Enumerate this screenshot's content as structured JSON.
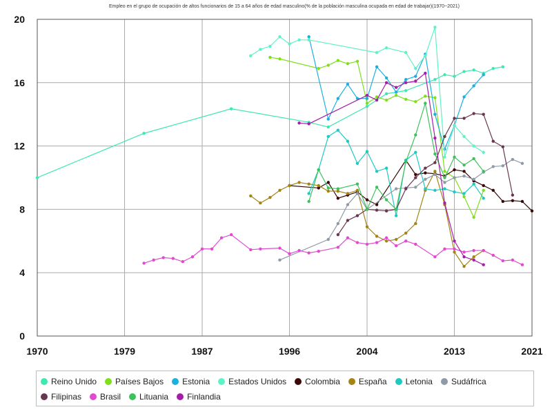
{
  "chart_data": {
    "type": "line",
    "title": "Empleo en el grupo de ocupación de altos funcionarios de 15 a 64 años de edad masculino(% de la población masculina ocupada en edad de trabajar)(1970~2021)",
    "xlabel": "",
    "ylabel": "",
    "xlim": [
      1970,
      2021
    ],
    "ylim": [
      0,
      20
    ],
    "x_ticks": [
      1970,
      1979,
      1987,
      1996,
      2004,
      2013,
      2021
    ],
    "y_ticks": [
      0,
      4,
      8,
      12,
      16,
      20
    ],
    "grid": true,
    "legend_position": "bottom",
    "series": [
      {
        "name": "Reino Unido",
        "color": "#3de8b2",
        "points": [
          [
            1970,
            10.0
          ],
          [
            1981,
            12.8
          ],
          [
            1990,
            14.35
          ],
          [
            1998,
            13.5
          ],
          [
            2000,
            13.2
          ],
          [
            2004,
            14.5
          ],
          [
            2006,
            15.3
          ],
          [
            2008,
            15.5
          ],
          [
            2011,
            16.2
          ],
          [
            2012,
            16.5
          ],
          [
            2013,
            16.4
          ],
          [
            2014,
            16.7
          ],
          [
            2015,
            16.8
          ],
          [
            2016,
            16.6
          ],
          [
            2017,
            16.9
          ],
          [
            2018,
            17.0
          ]
        ]
      },
      {
        "name": "Países Bajos",
        "color": "#7ee01c",
        "points": [
          [
            1994,
            17.6
          ],
          [
            1995,
            17.5
          ],
          [
            1999,
            16.9
          ],
          [
            2000,
            17.1
          ],
          [
            2001,
            17.4
          ],
          [
            2002,
            17.2
          ],
          [
            2003,
            17.35
          ],
          [
            2004,
            14.7
          ],
          [
            2005,
            15.1
          ],
          [
            2006,
            14.9
          ],
          [
            2007,
            15.2
          ],
          [
            2008,
            14.95
          ],
          [
            2009,
            14.8
          ],
          [
            2010,
            15.15
          ],
          [
            2011,
            15.05
          ],
          [
            2012,
            10.4
          ],
          [
            2013,
            10.0
          ],
          [
            2014,
            8.8
          ],
          [
            2015,
            7.5
          ],
          [
            2016,
            9.2
          ]
        ]
      },
      {
        "name": "Estonia",
        "color": "#1ab0e0",
        "points": [
          [
            1998,
            18.9
          ],
          [
            2000,
            13.7
          ],
          [
            2001,
            15.0
          ],
          [
            2002,
            15.9
          ],
          [
            2003,
            15.0
          ],
          [
            2004,
            15.0
          ],
          [
            2005,
            17.0
          ],
          [
            2006,
            16.3
          ],
          [
            2007,
            15.4
          ],
          [
            2008,
            16.2
          ],
          [
            2009,
            16.4
          ],
          [
            2010,
            17.8
          ],
          [
            2011,
            14.0
          ],
          [
            2012,
            11.8
          ],
          [
            2013,
            13.3
          ],
          [
            2014,
            15.1
          ],
          [
            2015,
            15.8
          ],
          [
            2016,
            16.5
          ]
        ]
      },
      {
        "name": "Estados Unidos",
        "color": "#5ef2c8",
        "points": [
          [
            1992,
            17.7
          ],
          [
            1993,
            18.1
          ],
          [
            1994,
            18.3
          ],
          [
            1995,
            18.9
          ],
          [
            1996,
            18.45
          ],
          [
            1997,
            18.7
          ],
          [
            1998,
            18.7
          ],
          [
            2005,
            17.9
          ],
          [
            2006,
            18.2
          ],
          [
            2008,
            17.9
          ],
          [
            2009,
            16.9
          ],
          [
            2010,
            17.7
          ],
          [
            2011,
            19.5
          ],
          [
            2012,
            11.3
          ],
          [
            2013,
            13.3
          ],
          [
            2014,
            12.6
          ],
          [
            2015,
            12.0
          ],
          [
            2016,
            11.6
          ]
        ]
      },
      {
        "name": "Colombia",
        "color": "#3a0808",
        "points": [
          [
            1996,
            9.5
          ],
          [
            1999,
            9.35
          ],
          [
            2000,
            9.7
          ],
          [
            2001,
            8.7
          ],
          [
            2002,
            8.9
          ],
          [
            2003,
            9.1
          ],
          [
            2004,
            8.6
          ],
          [
            2005,
            8.3
          ],
          [
            2008,
            11.1
          ],
          [
            2009,
            10.2
          ],
          [
            2010,
            10.3
          ],
          [
            2011,
            10.25
          ],
          [
            2012,
            10.1
          ],
          [
            2013,
            10.5
          ],
          [
            2014,
            10.4
          ],
          [
            2015,
            9.8
          ],
          [
            2016,
            9.5
          ],
          [
            2017,
            9.2
          ],
          [
            2018,
            8.5
          ],
          [
            2019,
            8.55
          ],
          [
            2020,
            8.5
          ],
          [
            2021,
            7.9
          ]
        ]
      },
      {
        "name": "España",
        "color": "#a38414",
        "points": [
          [
            1992,
            8.85
          ],
          [
            1993,
            8.4
          ],
          [
            1994,
            8.75
          ],
          [
            1995,
            9.2
          ],
          [
            1996,
            9.5
          ],
          [
            1997,
            9.7
          ],
          [
            1998,
            9.6
          ],
          [
            1999,
            9.5
          ],
          [
            2000,
            9.15
          ],
          [
            2001,
            9.15
          ],
          [
            2002,
            9.0
          ],
          [
            2003,
            9.2
          ],
          [
            2004,
            6.9
          ],
          [
            2005,
            6.3
          ],
          [
            2006,
            6.0
          ],
          [
            2007,
            6.1
          ],
          [
            2008,
            6.5
          ],
          [
            2009,
            7.1
          ],
          [
            2010,
            9.2
          ],
          [
            2011,
            10.4
          ],
          [
            2012,
            8.3
          ],
          [
            2013,
            5.3
          ],
          [
            2014,
            4.4
          ],
          [
            2015,
            5.0
          ],
          [
            2016,
            5.4
          ]
        ]
      },
      {
        "name": "Letonia",
        "color": "#1ec9c2",
        "points": [
          [
            1998,
            9.0
          ],
          [
            1999,
            10.5
          ],
          [
            2000,
            12.6
          ],
          [
            2001,
            13.0
          ],
          [
            2002,
            12.3
          ],
          [
            2003,
            10.9
          ],
          [
            2004,
            11.65
          ],
          [
            2005,
            10.4
          ],
          [
            2006,
            10.6
          ],
          [
            2007,
            7.6
          ],
          [
            2008,
            11.1
          ],
          [
            2009,
            11.6
          ],
          [
            2010,
            9.3
          ],
          [
            2011,
            9.2
          ],
          [
            2012,
            9.3
          ],
          [
            2013,
            9.1
          ],
          [
            2014,
            9.0
          ],
          [
            2015,
            9.6
          ],
          [
            2016,
            8.7
          ]
        ]
      },
      {
        "name": "Sudáfrica",
        "color": "#8f9aa8",
        "points": [
          [
            1995,
            4.8
          ],
          [
            2000,
            6.1
          ],
          [
            2001,
            7.1
          ],
          [
            2002,
            8.3
          ],
          [
            2003,
            9.0
          ],
          [
            2004,
            8.0
          ],
          [
            2007,
            9.3
          ],
          [
            2008,
            9.35
          ],
          [
            2009,
            9.4
          ],
          [
            2010,
            9.9
          ],
          [
            2011,
            10.2
          ],
          [
            2012,
            9.7
          ],
          [
            2013,
            10.0
          ],
          [
            2014,
            10.1
          ],
          [
            2015,
            9.9
          ],
          [
            2016,
            10.35
          ],
          [
            2017,
            10.7
          ],
          [
            2018,
            10.75
          ],
          [
            2019,
            11.15
          ],
          [
            2020,
            10.9
          ]
        ]
      },
      {
        "name": "Filipinas",
        "color": "#6a3550",
        "points": [
          [
            2001,
            6.4
          ],
          [
            2002,
            7.3
          ],
          [
            2003,
            7.6
          ],
          [
            2004,
            8.0
          ],
          [
            2005,
            7.95
          ],
          [
            2006,
            7.9
          ],
          [
            2007,
            8.0
          ],
          [
            2008,
            9.3
          ],
          [
            2009,
            10.0
          ],
          [
            2010,
            10.6
          ],
          [
            2011,
            10.95
          ],
          [
            2012,
            12.6
          ],
          [
            2013,
            13.75
          ],
          [
            2014,
            13.75
          ],
          [
            2015,
            14.05
          ],
          [
            2016,
            14.0
          ],
          [
            2017,
            12.3
          ],
          [
            2018,
            11.95
          ],
          [
            2019,
            8.9
          ]
        ]
      },
      {
        "name": "Brasil",
        "color": "#e14ad0",
        "points": [
          [
            1981,
            4.6
          ],
          [
            1982,
            4.8
          ],
          [
            1983,
            4.95
          ],
          [
            1984,
            4.9
          ],
          [
            1985,
            4.7
          ],
          [
            1986,
            5.0
          ],
          [
            1987,
            5.5
          ],
          [
            1988,
            5.5
          ],
          [
            1989,
            6.2
          ],
          [
            1990,
            6.4
          ],
          [
            1992,
            5.45
          ],
          [
            1993,
            5.5
          ],
          [
            1995,
            5.55
          ],
          [
            1996,
            5.2
          ],
          [
            1997,
            5.4
          ],
          [
            1998,
            5.25
          ],
          [
            1999,
            5.35
          ],
          [
            2001,
            5.6
          ],
          [
            2002,
            6.2
          ],
          [
            2003,
            5.9
          ],
          [
            2004,
            5.8
          ],
          [
            2005,
            5.9
          ],
          [
            2006,
            6.2
          ],
          [
            2007,
            5.7
          ],
          [
            2008,
            6.0
          ],
          [
            2009,
            5.8
          ],
          [
            2011,
            5.0
          ],
          [
            2012,
            5.5
          ],
          [
            2013,
            5.5
          ],
          [
            2014,
            5.3
          ],
          [
            2015,
            5.4
          ],
          [
            2016,
            5.4
          ],
          [
            2017,
            5.1
          ],
          [
            2018,
            4.75
          ],
          [
            2019,
            4.8
          ],
          [
            2020,
            4.5
          ]
        ]
      },
      {
        "name": "Lituania",
        "color": "#3cc25a",
        "points": [
          [
            1998,
            8.5
          ],
          [
            1999,
            10.5
          ],
          [
            2000,
            9.35
          ],
          [
            2001,
            9.3
          ],
          [
            2003,
            9.6
          ],
          [
            2004,
            8.0
          ],
          [
            2005,
            9.4
          ],
          [
            2006,
            8.6
          ],
          [
            2007,
            8.0
          ],
          [
            2008,
            11.0
          ],
          [
            2009,
            12.7
          ],
          [
            2010,
            14.7
          ],
          [
            2011,
            11.5
          ],
          [
            2012,
            10.0
          ],
          [
            2013,
            11.3
          ],
          [
            2014,
            10.8
          ],
          [
            2015,
            11.2
          ],
          [
            2016,
            10.4
          ]
        ]
      },
      {
        "name": "Finlandia",
        "color": "#a61ea8",
        "points": [
          [
            1997,
            13.45
          ],
          [
            1998,
            13.4
          ],
          [
            2004,
            15.2
          ],
          [
            2005,
            14.9
          ],
          [
            2006,
            16.0
          ],
          [
            2007,
            15.7
          ],
          [
            2008,
            16.0
          ],
          [
            2009,
            16.1
          ],
          [
            2010,
            16.6
          ],
          [
            2011,
            12.5
          ],
          [
            2012,
            8.4
          ],
          [
            2013,
            6.0
          ],
          [
            2014,
            5.0
          ],
          [
            2015,
            4.8
          ],
          [
            2016,
            4.5
          ]
        ]
      }
    ]
  }
}
